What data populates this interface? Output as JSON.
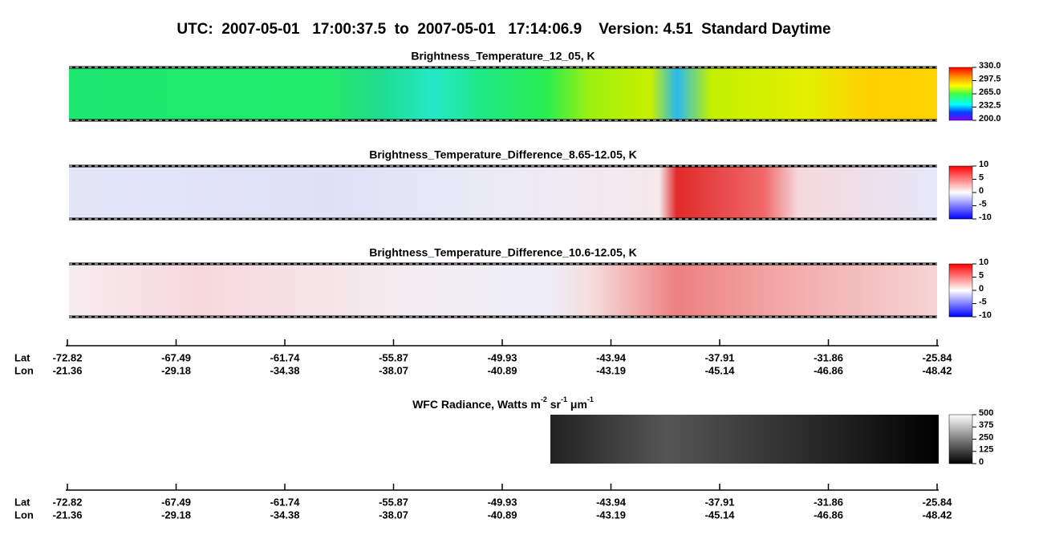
{
  "header": {
    "title": "UTC:  2007-05-01   17:00:37.5  to  2007-05-01   17:14:06.9    Version: 4.51  Standard Daytime"
  },
  "panels": [
    {
      "title": "Brightness_Temperature_12_05, K",
      "colorbar_ticks": [
        "330.0",
        "297.5",
        "265.0",
        "232.5",
        "200.0"
      ]
    },
    {
      "title": "Brightness_Temperature_Difference_8.65-12.05, K",
      "colorbar_ticks": [
        "10",
        "5",
        "0",
        "-5",
        "-10"
      ]
    },
    {
      "title": "Brightness_Temperature_Difference_10.6-12.05, K",
      "colorbar_ticks": [
        "10",
        "5",
        "0",
        "-5",
        "-10"
      ]
    }
  ],
  "wfc": {
    "title_parts": [
      "WFC Radiance, Watts m",
      "-2",
      " sr",
      "-1",
      " μm",
      "-1"
    ],
    "colorbar_ticks": [
      "500",
      "375",
      "250",
      "125",
      "0"
    ]
  },
  "axes": [
    {
      "lat_label": "Lat",
      "lon_label": "Lon",
      "lat": [
        "-72.82",
        "-67.49",
        "-61.74",
        "-55.87",
        "-49.93",
        "-43.94",
        "-37.91",
        "-31.86",
        "-25.84"
      ],
      "lon": [
        "-21.36",
        "-29.18",
        "-34.38",
        "-38.07",
        "-40.89",
        "-43.19",
        "-45.14",
        "-46.86",
        "-48.42"
      ]
    },
    {
      "lat_label": "Lat",
      "lon_label": "Lon",
      "lat": [
        "-72.82",
        "-67.49",
        "-61.74",
        "-55.87",
        "-49.93",
        "-43.94",
        "-37.91",
        "-31.86",
        "-25.84"
      ],
      "lon": [
        "-21.36",
        "-29.18",
        "-34.38",
        "-38.07",
        "-40.89",
        "-43.19",
        "-45.14",
        "-46.86",
        "-48.42"
      ]
    }
  ]
}
